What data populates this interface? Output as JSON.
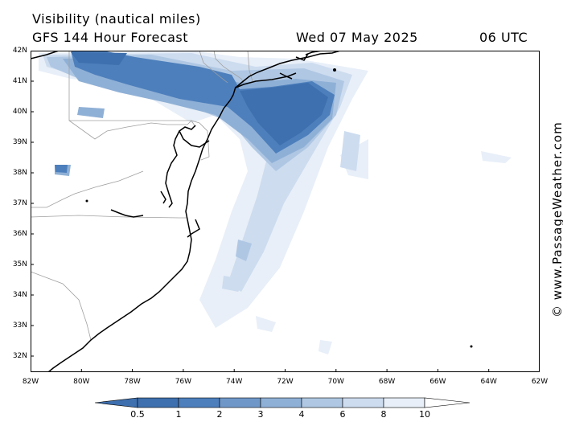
{
  "header": {
    "title": "Visibility (nautical miles)",
    "subtitle": "GFS 144 Hour Forecast",
    "date": "Wed 07 May 2025",
    "time": "06 UTC"
  },
  "credit": "© www.PassageWeather.com",
  "map": {
    "lon_range": [
      -82,
      -62
    ],
    "lat_range": [
      31.5,
      42
    ],
    "lat_labels": [
      "42N",
      "41N",
      "40N",
      "39N",
      "38N",
      "37N",
      "36N",
      "35N",
      "34N",
      "33N",
      "32N"
    ],
    "lon_labels": [
      "82W",
      "80W",
      "78W",
      "76W",
      "74W",
      "72W",
      "70W",
      "68W",
      "66W",
      "64W",
      "62W"
    ],
    "coastline_color": "#000000",
    "border_color": "#a0a0a0"
  },
  "legend": {
    "labels": [
      "0.5",
      "1",
      "2",
      "3",
      "4",
      "6",
      "8",
      "10"
    ],
    "colors": [
      "#3e6fae",
      "#4d7fbc",
      "#6f98c9",
      "#8fb0d6",
      "#afc7e3",
      "#cddcef",
      "#e8eff8",
      "#ffffff"
    ]
  }
}
